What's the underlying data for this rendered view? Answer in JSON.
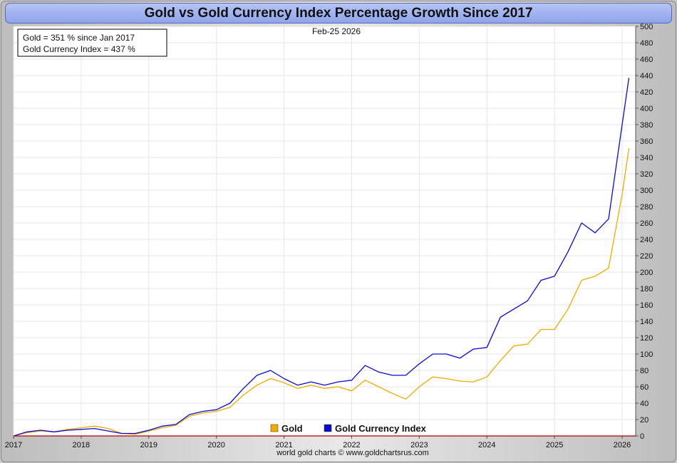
{
  "chart_data": {
    "type": "line",
    "title": "Gold vs Gold Currency Index Percentage Growth Since 2017",
    "date_label": "Feb-25  2026",
    "annotation_lines": [
      "Gold = 351 % since Jan 2017",
      "Gold Currency Index = 437 %"
    ],
    "credit": "world gold charts © www.goldchartsrus.com",
    "xlabel": "",
    "ylabel": "",
    "xlim": [
      2017.0,
      2026.2
    ],
    "ylim": [
      0,
      500
    ],
    "y_ticks": [
      0,
      20,
      40,
      60,
      80,
      100,
      120,
      140,
      160,
      180,
      200,
      220,
      240,
      260,
      280,
      300,
      320,
      340,
      360,
      380,
      400,
      420,
      440,
      460,
      480,
      500
    ],
    "x_ticks": [
      "2017",
      "2018",
      "2019",
      "2020",
      "2021",
      "2022",
      "2023",
      "2024",
      "2025",
      "2026"
    ],
    "grid": true,
    "legend_position": "bottom-center",
    "series": [
      {
        "name": "Gold",
        "color": "#f2a900",
        "points": [
          [
            2017.0,
            0
          ],
          [
            2017.2,
            4
          ],
          [
            2017.4,
            6
          ],
          [
            2017.6,
            5
          ],
          [
            2017.8,
            8
          ],
          [
            2018.0,
            10
          ],
          [
            2018.2,
            12
          ],
          [
            2018.4,
            9
          ],
          [
            2018.6,
            3
          ],
          [
            2018.8,
            2
          ],
          [
            2019.0,
            6
          ],
          [
            2019.2,
            10
          ],
          [
            2019.4,
            13
          ],
          [
            2019.6,
            24
          ],
          [
            2019.8,
            28
          ],
          [
            2020.0,
            30
          ],
          [
            2020.2,
            35
          ],
          [
            2020.4,
            50
          ],
          [
            2020.6,
            62
          ],
          [
            2020.8,
            70
          ],
          [
            2021.0,
            65
          ],
          [
            2021.2,
            58
          ],
          [
            2021.4,
            62
          ],
          [
            2021.6,
            58
          ],
          [
            2021.8,
            60
          ],
          [
            2022.0,
            55
          ],
          [
            2022.2,
            68
          ],
          [
            2022.4,
            60
          ],
          [
            2022.6,
            52
          ],
          [
            2022.8,
            45
          ],
          [
            2023.0,
            60
          ],
          [
            2023.2,
            72
          ],
          [
            2023.4,
            70
          ],
          [
            2023.6,
            67
          ],
          [
            2023.8,
            66
          ],
          [
            2024.0,
            72
          ],
          [
            2024.2,
            92
          ],
          [
            2024.4,
            110
          ],
          [
            2024.6,
            112
          ],
          [
            2024.8,
            130
          ],
          [
            2025.0,
            130
          ],
          [
            2025.2,
            155
          ],
          [
            2025.4,
            190
          ],
          [
            2025.6,
            195
          ],
          [
            2025.8,
            205
          ],
          [
            2026.0,
            295
          ],
          [
            2026.1,
            351
          ]
        ]
      },
      {
        "name": "Gold Currency Index",
        "color": "#0a0ad0",
        "points": [
          [
            2017.0,
            0
          ],
          [
            2017.2,
            5
          ],
          [
            2017.4,
            7
          ],
          [
            2017.6,
            5
          ],
          [
            2017.8,
            7
          ],
          [
            2018.0,
            8
          ],
          [
            2018.2,
            9
          ],
          [
            2018.4,
            6
          ],
          [
            2018.6,
            3
          ],
          [
            2018.8,
            3
          ],
          [
            2019.0,
            7
          ],
          [
            2019.2,
            12
          ],
          [
            2019.4,
            14
          ],
          [
            2019.6,
            26
          ],
          [
            2019.8,
            30
          ],
          [
            2020.0,
            32
          ],
          [
            2020.2,
            40
          ],
          [
            2020.4,
            58
          ],
          [
            2020.6,
            74
          ],
          [
            2020.8,
            80
          ],
          [
            2021.0,
            70
          ],
          [
            2021.2,
            62
          ],
          [
            2021.4,
            66
          ],
          [
            2021.6,
            62
          ],
          [
            2021.8,
            66
          ],
          [
            2022.0,
            68
          ],
          [
            2022.2,
            86
          ],
          [
            2022.4,
            78
          ],
          [
            2022.6,
            74
          ],
          [
            2022.8,
            74
          ],
          [
            2023.0,
            88
          ],
          [
            2023.2,
            100
          ],
          [
            2023.4,
            100
          ],
          [
            2023.6,
            95
          ],
          [
            2023.8,
            106
          ],
          [
            2024.0,
            108
          ],
          [
            2024.2,
            145
          ],
          [
            2024.4,
            155
          ],
          [
            2024.6,
            165
          ],
          [
            2024.8,
            190
          ],
          [
            2025.0,
            195
          ],
          [
            2025.2,
            225
          ],
          [
            2025.4,
            260
          ],
          [
            2025.6,
            248
          ],
          [
            2025.8,
            265
          ],
          [
            2026.0,
            380
          ],
          [
            2026.1,
            437
          ]
        ]
      }
    ]
  }
}
